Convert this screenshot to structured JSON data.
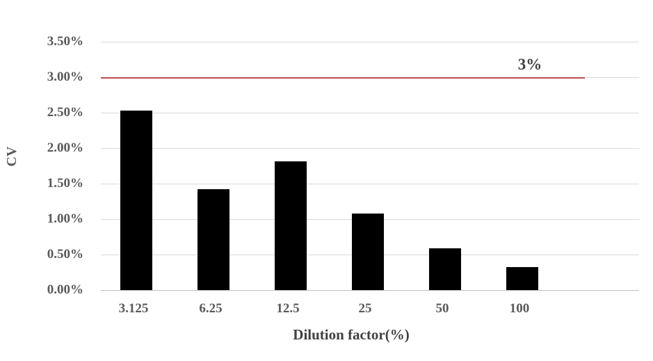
{
  "chart_data": {
    "type": "bar",
    "title": "",
    "xlabel": "Dilution factor(%)",
    "ylabel": "CV",
    "categories": [
      "3.125",
      "6.25",
      "12.5",
      "25",
      "50",
      "100"
    ],
    "values": [
      2.53,
      1.42,
      1.81,
      1.08,
      0.59,
      0.32
    ],
    "value_unit": "%",
    "ylim": [
      0,
      3.5
    ],
    "ytick_step": 0.5,
    "ytick_labels": [
      "0.00%",
      "0.50%",
      "1.00%",
      "1.50%",
      "2.00%",
      "2.50%",
      "3.00%",
      "3.50%"
    ],
    "grid": true,
    "legend": "none",
    "bar_color": "#000000",
    "gridline_color": "#d9d9d9",
    "axis_line_color": "#bfbfbf",
    "tick_label_color": "#595959",
    "reference_line": {
      "value": 3.0,
      "label": "3%",
      "color": "#be4b48"
    }
  }
}
